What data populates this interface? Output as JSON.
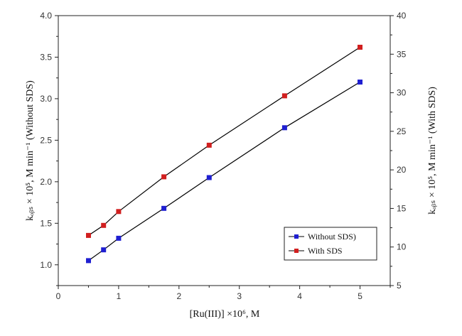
{
  "chart_data": {
    "type": "line",
    "xlabel": "[Ru(III)] ×10⁶, M",
    "ylabel_left": "kₒᵦₛ × 10⁵, M min⁻¹ (Without SDS)",
    "ylabel_right": "kₒᵦₛ × 10⁵, M min⁻¹ (With SDS)",
    "xlim": [
      0,
      5.5
    ],
    "ylim_left": [
      0.75,
      4.0
    ],
    "ylim_right": [
      5,
      40
    ],
    "x_ticks": [
      "0",
      "1",
      "2",
      "3",
      "4",
      "5"
    ],
    "y_left_ticks": [
      "1.0",
      "1.5",
      "2.0",
      "2.5",
      "3.0",
      "3.5",
      "4.0"
    ],
    "y_right_ticks": [
      "5",
      "10",
      "15",
      "20",
      "25",
      "30",
      "35",
      "40"
    ],
    "legend_position": "bottom-right",
    "series": [
      {
        "name": "Without SDS)",
        "color": "#1f1fd1",
        "axis": "left",
        "x": [
          0.5,
          0.75,
          1.0,
          1.75,
          2.5,
          3.75,
          5.0
        ],
        "y": [
          1.05,
          1.18,
          1.32,
          1.68,
          2.05,
          2.65,
          3.2
        ]
      },
      {
        "name": "With SDS",
        "color": "#d11f1f",
        "axis": "right",
        "x": [
          0.5,
          0.75,
          1.0,
          1.75,
          2.5,
          3.75,
          5.0
        ],
        "y": [
          11.5,
          12.8,
          14.6,
          19.1,
          23.2,
          29.6,
          35.9
        ]
      }
    ]
  }
}
